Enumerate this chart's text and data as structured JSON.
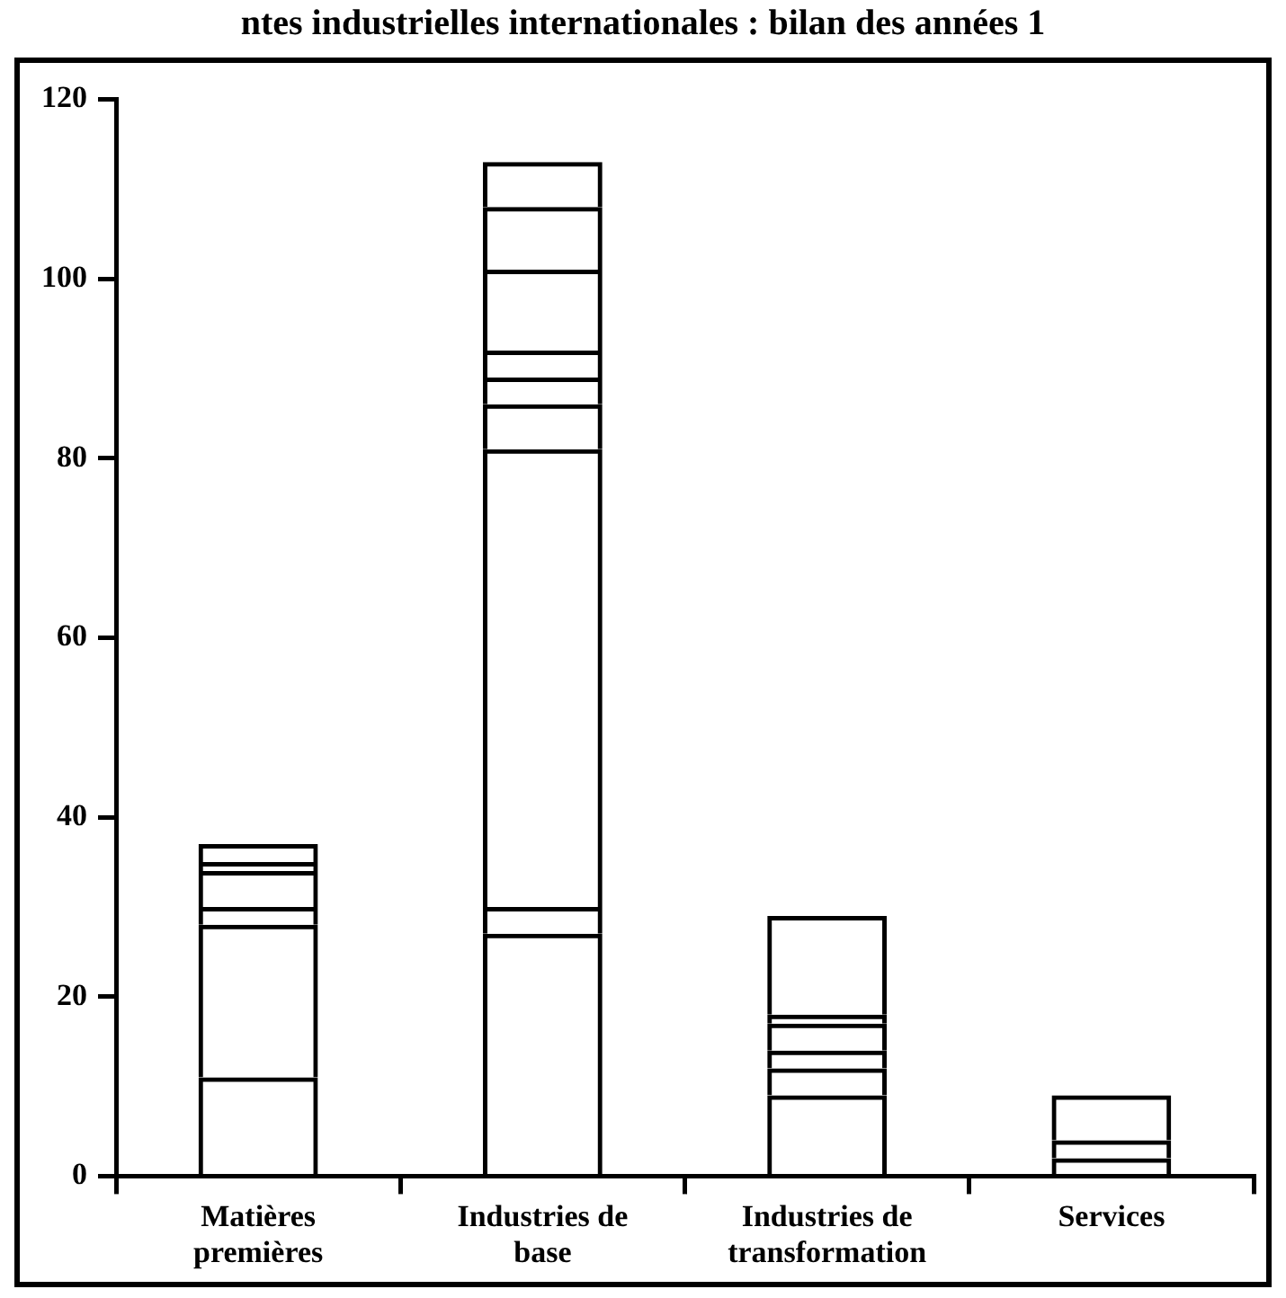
{
  "chart_data": {
    "type": "bar",
    "title": "ntes industrielles internationales : bilan des années 1",
    "categories": [
      "Matières premières",
      "Industries de base",
      "Industries de transformation",
      "Services"
    ],
    "stacked": true,
    "grid": false,
    "legend": false,
    "ylim": [
      0,
      120
    ],
    "yticks": [
      0,
      20,
      40,
      60,
      80,
      100,
      120
    ],
    "series": [
      {
        "color": "#000000",
        "values": [
          11,
          27,
          9,
          2
        ]
      },
      {
        "color": "#000000",
        "values": [
          17,
          3,
          3,
          2
        ]
      },
      {
        "color": "#000000",
        "values": [
          2,
          51,
          2,
          5
        ]
      },
      {
        "color": "#000000",
        "values": [
          4,
          5,
          3,
          null
        ]
      },
      {
        "color": "#000000",
        "values": [
          1,
          3,
          1,
          null
        ]
      },
      {
        "color": "#000000",
        "values": [
          2,
          3,
          11,
          null
        ]
      },
      {
        "color": "#000000",
        "values": [
          null,
          9,
          null,
          null
        ]
      },
      {
        "color": "#000000",
        "values": [
          null,
          7,
          null,
          null
        ]
      },
      {
        "color": "#000000",
        "values": [
          null,
          5,
          null,
          null
        ]
      }
    ]
  }
}
